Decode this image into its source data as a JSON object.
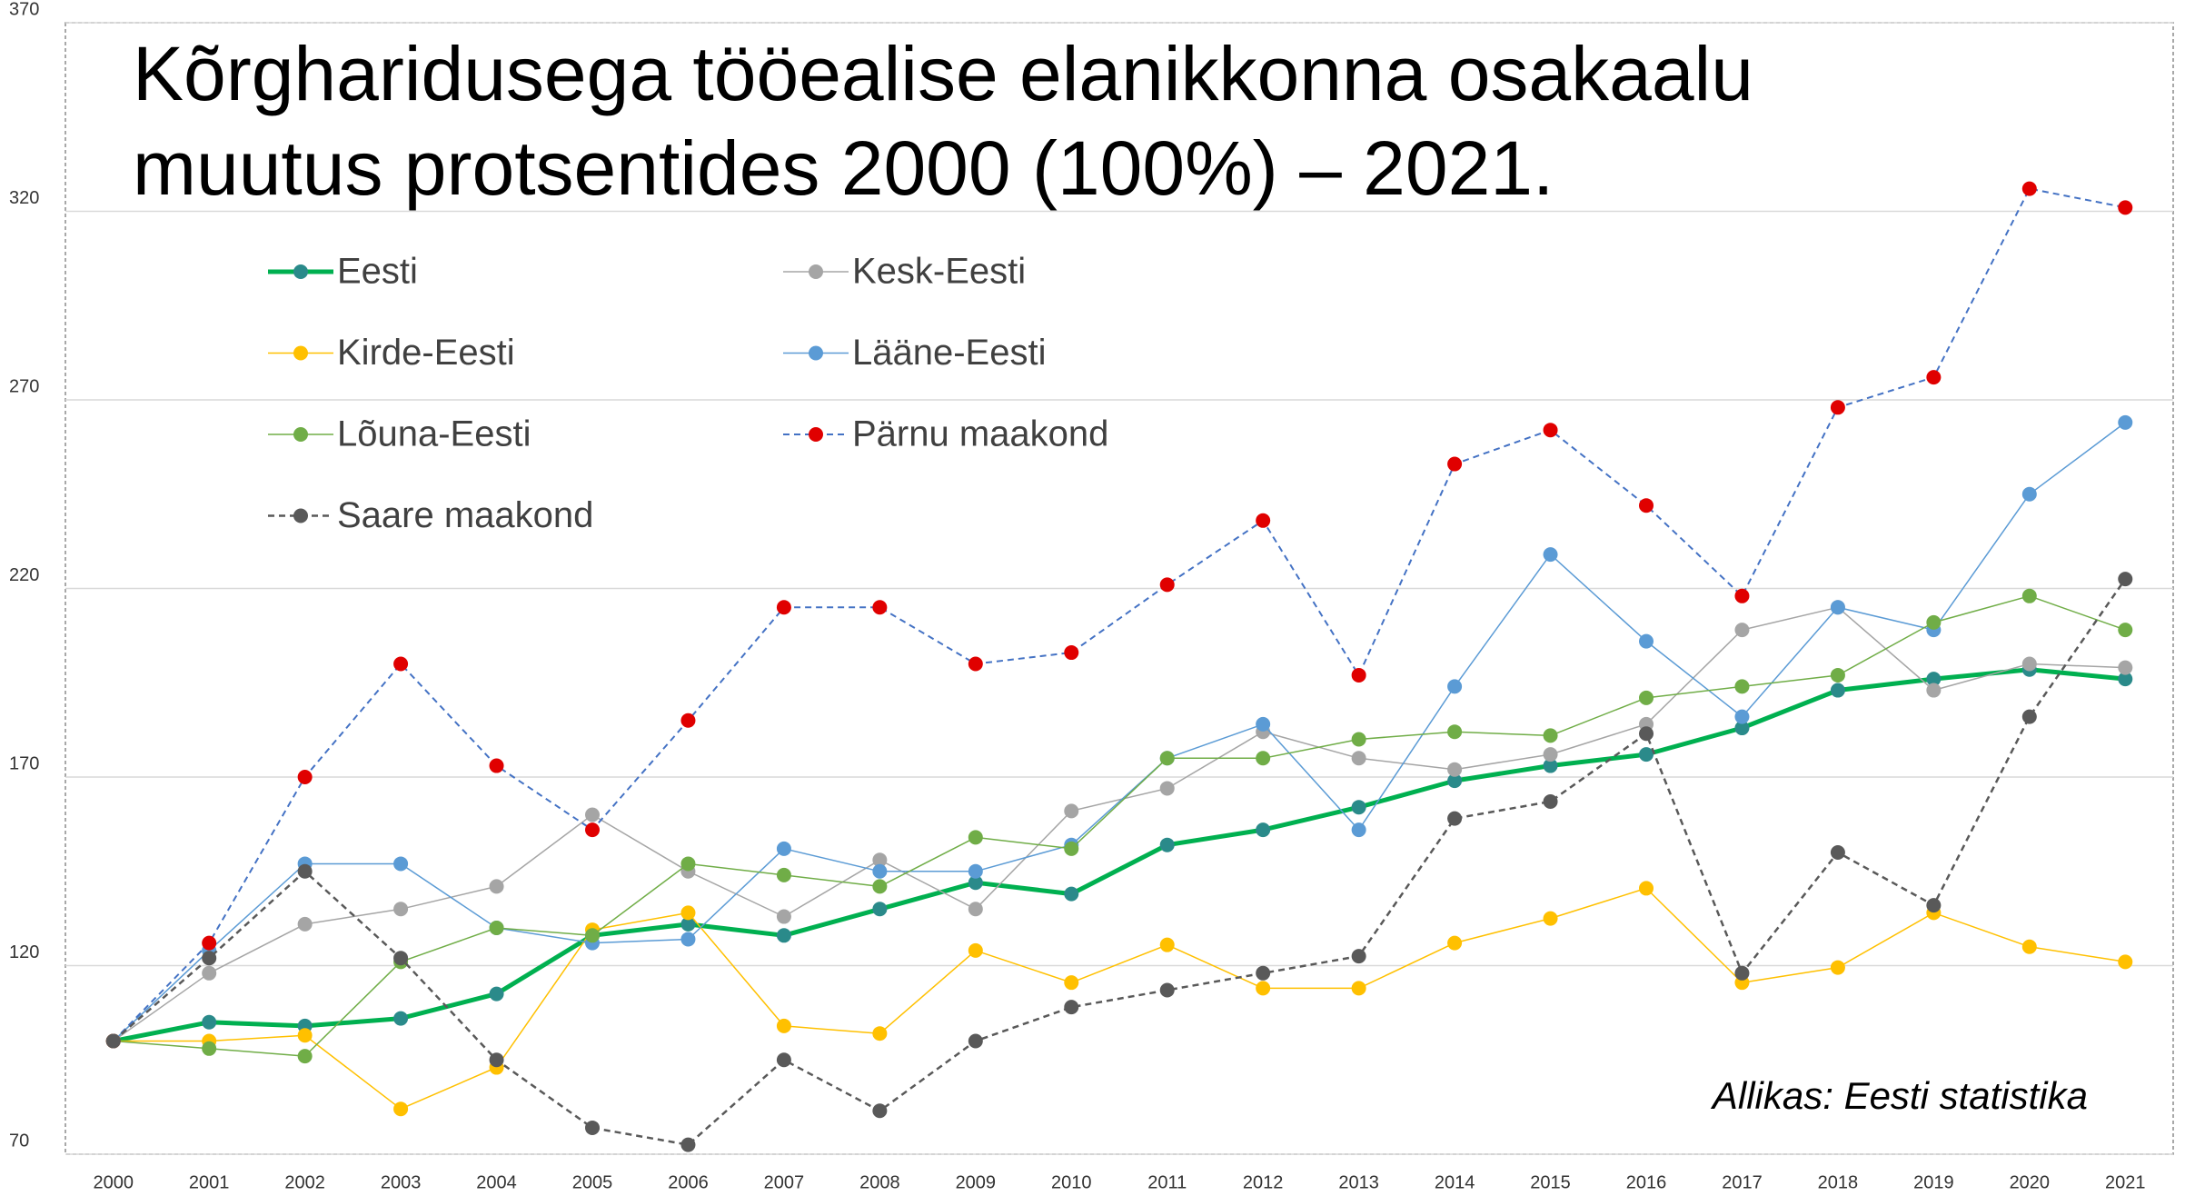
{
  "chart_data": {
    "type": "line",
    "title": [
      "Kõrgharidusega tööealise elanikkonna osakaalu",
      "muutus protsentides 2000 (100%) – 2021."
    ],
    "annotation": "Allikas: Eesti statistika",
    "categories": [
      "2000",
      "2001",
      "2002",
      "2003",
      "2004",
      "2005",
      "2006",
      "2007",
      "2008",
      "2009",
      "2010",
      "2011",
      "2012",
      "2013",
      "2014",
      "2015",
      "2016",
      "2017",
      "2018",
      "2019",
      "2020",
      "2021"
    ],
    "ylim": [
      70,
      370
    ],
    "yticks": [
      70,
      120,
      170,
      220,
      270,
      320,
      370
    ],
    "grid": true,
    "legend": "top-left",
    "series": [
      {
        "name": "Eesti",
        "color": "#00b050",
        "marker_color": "#2a8a8a",
        "line_width": 5,
        "dashed": false,
        "values": [
          100,
          105,
          104,
          106,
          112.5,
          128,
          131,
          128,
          135,
          142,
          139,
          152,
          156,
          162,
          169,
          173,
          176,
          183,
          193,
          196,
          198.5,
          196
        ]
      },
      {
        "name": "Kesk-Eesti",
        "color": "#a5a5a5",
        "marker_color": "#a5a5a5",
        "line_width": 1.5,
        "dashed": false,
        "values": [
          100,
          118,
          131,
          135,
          141,
          160,
          145,
          133,
          148,
          135,
          161,
          167,
          182,
          175,
          172,
          176,
          184,
          209,
          215,
          193,
          200,
          199
        ]
      },
      {
        "name": "Kirde-Eesti",
        "color": "#ffc000",
        "marker_color": "#ffc000",
        "line_width": 1.5,
        "dashed": false,
        "values": [
          100,
          100,
          101.5,
          82,
          93,
          129.5,
          134,
          104,
          102,
          124,
          115.5,
          125.5,
          114,
          114,
          126,
          132.5,
          140.5,
          115.5,
          119.5,
          134,
          125,
          121
        ]
      },
      {
        "name": "Lääne-Eesti",
        "color": "#5b9bd5",
        "marker_color": "#5b9bd5",
        "line_width": 1.5,
        "dashed": false,
        "values": [
          100,
          124,
          147,
          147,
          130,
          126,
          127,
          151,
          145,
          145,
          152,
          175,
          184,
          156,
          194,
          229,
          206,
          186,
          215,
          209,
          245,
          264
        ]
      },
      {
        "name": "Lõuna-Eesti",
        "color": "#70ad47",
        "marker_color": "#70ad47",
        "line_width": 1.5,
        "dashed": false,
        "values": [
          100,
          98,
          96,
          121,
          130,
          128,
          147,
          144,
          141,
          154,
          151,
          175,
          175,
          180,
          182,
          181,
          191,
          194,
          197,
          211,
          218,
          209
        ]
      },
      {
        "name": "Pärnu maakond",
        "color": "#4472c4",
        "marker_color": "#e00000",
        "line_width": 2,
        "dashed": true,
        "values": [
          100,
          126,
          170,
          200,
          173,
          156,
          185,
          215,
          215,
          200,
          203,
          221,
          238,
          197,
          253,
          262,
          242,
          218,
          268,
          276,
          326,
          321
        ]
      },
      {
        "name": "Saare maakond",
        "color": "#595959",
        "marker_color": "#595959",
        "line_width": 2.5,
        "dashed": true,
        "values": [
          100,
          122,
          145,
          122,
          95,
          77,
          72.5,
          95,
          81.5,
          100,
          109,
          113.5,
          118,
          122.5,
          159,
          163.5,
          181.5,
          118,
          150,
          136,
          186,
          222.5
        ]
      }
    ]
  }
}
